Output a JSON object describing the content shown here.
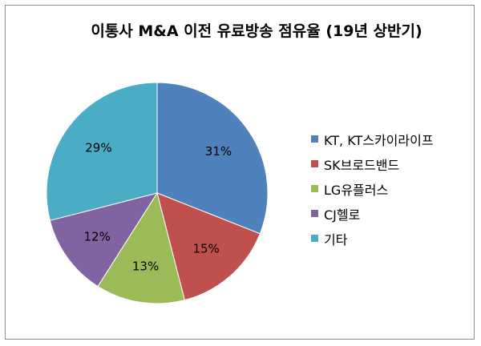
{
  "chart_data": {
    "type": "pie",
    "title": "이통사 M&A 이전 유료방송 점유율 (19년 상반기)",
    "slices": [
      {
        "label": "KT, KT스카이라이프",
        "value": 31,
        "value_label": "31%",
        "color": "#4f81bd"
      },
      {
        "label": "SK브로드밴드",
        "value": 15,
        "value_label": "15%",
        "color": "#c0504d"
      },
      {
        "label": "LG유플러스",
        "value": 13,
        "value_label": "13%",
        "color": "#9bbb59"
      },
      {
        "label": "CJ헬로",
        "value": 12,
        "value_label": "12%",
        "color": "#8064a2"
      },
      {
        "label": "기타",
        "value": 29,
        "value_label": "29%",
        "color": "#4bacc6"
      }
    ],
    "legend_position": "right"
  }
}
